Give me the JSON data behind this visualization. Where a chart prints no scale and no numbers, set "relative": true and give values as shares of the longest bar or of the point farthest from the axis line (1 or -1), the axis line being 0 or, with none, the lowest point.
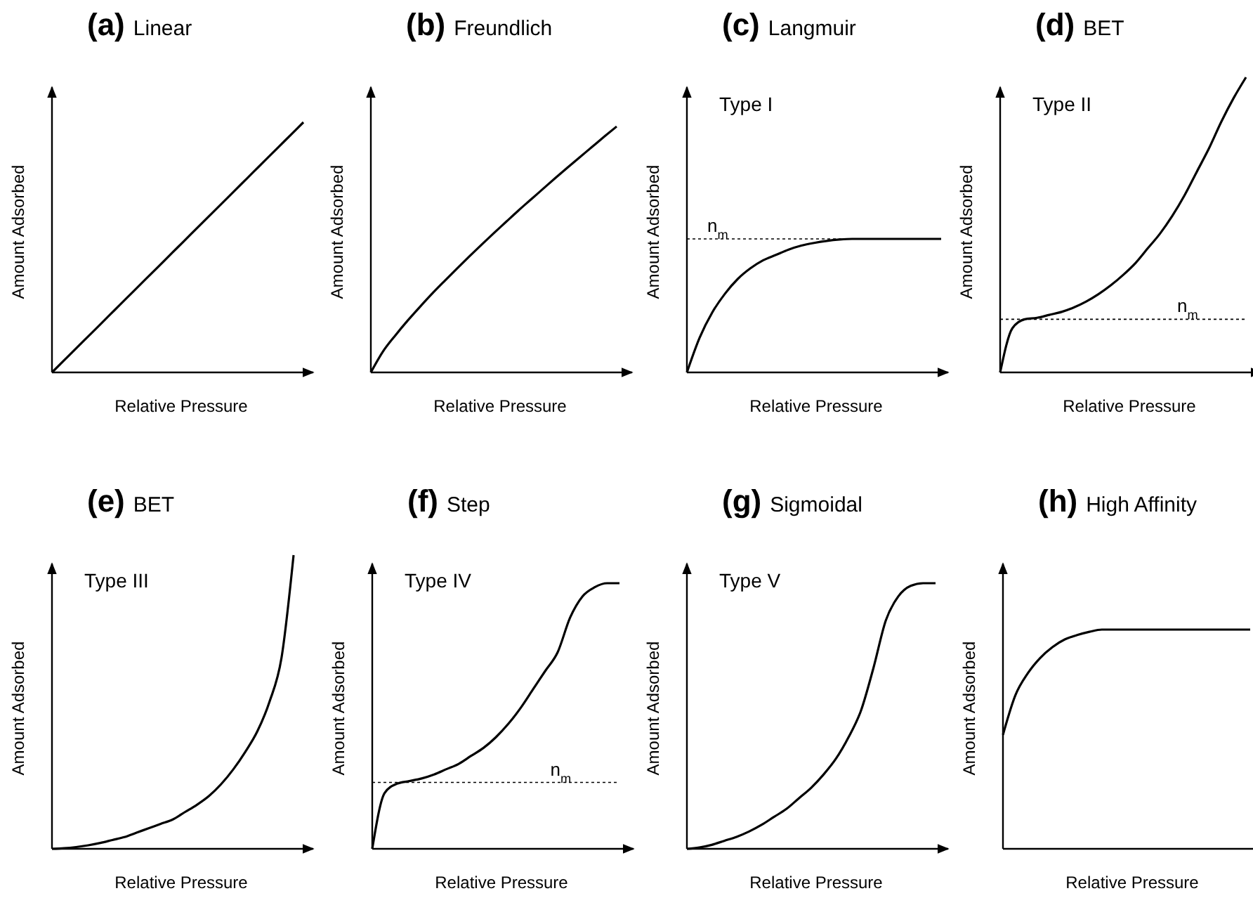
{
  "chart_data": [
    {
      "type": "line",
      "title": "(a) Linear",
      "xlabel": "Relative Pressure",
      "ylabel": "Amount Adsorbed",
      "relative": true,
      "color": "#000000",
      "categories": [
        null,
        null,
        null,
        null,
        null,
        null,
        null,
        null,
        null,
        null,
        null,
        null,
        null,
        null,
        null,
        null,
        null,
        null,
        null,
        null,
        null
      ],
      "values": [
        0,
        0.05,
        0.1,
        0.15,
        0.2,
        0.25,
        0.3,
        0.35,
        0.4,
        0.45,
        0.5,
        0.55,
        0.6,
        0.65,
        0.7,
        0.75,
        0.8,
        0.85,
        0.9,
        0.95,
        1
      ]
    },
    {
      "type": "line",
      "title": "(b) Freundlich",
      "xlabel": "Relative Pressure",
      "ylabel": "Amount Adsorbed",
      "relative": true,
      "color": "#000000",
      "categories": [
        null,
        null,
        null,
        null,
        null,
        null,
        null,
        null,
        null,
        null,
        null,
        null,
        null,
        null,
        null,
        null,
        null,
        null,
        null,
        null,
        null
      ],
      "values": [
        0,
        0.086,
        0.151,
        0.211,
        0.267,
        0.321,
        0.372,
        0.422,
        0.471,
        0.519,
        0.566,
        0.612,
        0.658,
        0.702,
        0.746,
        0.79,
        0.833,
        0.875,
        0.917,
        0.959,
        1
      ]
    },
    {
      "type": "line",
      "title": "(c) Langmuir",
      "xlabel": "Relative Pressure",
      "ylabel": "Amount Adsorbed",
      "relative": true,
      "color": "#000000",
      "annotations": [
        "Type I"
      ],
      "ref_lines": [
        {
          "axis": "y",
          "value": 1,
          "label": "n$_{m}$",
          "line_style": "dotted"
        }
      ],
      "categories": [
        null,
        null,
        null,
        null,
        null,
        null,
        null,
        null,
        null,
        null,
        null,
        null,
        null,
        null,
        null,
        null,
        null,
        null,
        null,
        null,
        null
      ],
      "values": [
        0,
        0.26,
        0.45,
        0.59,
        0.7,
        0.78,
        0.84,
        0.88,
        0.92,
        0.95,
        0.97,
        0.985,
        0.995,
        1,
        1,
        1,
        1,
        1,
        1,
        1,
        1
      ]
    },
    {
      "type": "line",
      "title": "(d) BET",
      "xlabel": "Relative Pressure",
      "ylabel": "Amount Adsorbed",
      "relative": true,
      "color": "#000000",
      "annotations": [
        "Type II"
      ],
      "ref_lines": [
        {
          "axis": "y",
          "value": 0.18,
          "label": "n$_{m}$",
          "line_style": "dotted"
        }
      ],
      "categories": [
        null,
        null,
        null,
        null,
        null,
        null,
        null,
        null,
        null,
        null,
        null,
        null,
        null,
        null,
        null,
        null,
        null,
        null,
        null,
        null,
        null
      ],
      "values": [
        0,
        0.15,
        0.18,
        0.185,
        0.195,
        0.205,
        0.22,
        0.24,
        0.265,
        0.295,
        0.33,
        0.37,
        0.42,
        0.47,
        0.53,
        0.6,
        0.68,
        0.76,
        0.85,
        0.93,
        1
      ]
    },
    {
      "type": "line",
      "title": "(e) BET",
      "xlabel": "Relative Pressure",
      "ylabel": "Amount Adsorbed",
      "relative": true,
      "color": "#000000",
      "annotations": [
        "Type III"
      ],
      "categories": [
        null,
        null,
        null,
        null,
        null,
        null,
        null,
        null,
        null,
        null,
        null,
        null,
        null,
        null,
        null,
        null,
        null,
        null,
        null,
        null,
        null
      ],
      "values": [
        0,
        0.002,
        0.006,
        0.012,
        0.02,
        0.03,
        0.04,
        0.055,
        0.07,
        0.085,
        0.1,
        0.125,
        0.15,
        0.18,
        0.22,
        0.27,
        0.33,
        0.4,
        0.5,
        0.65,
        1
      ]
    },
    {
      "type": "line",
      "title": "(f) Step",
      "xlabel": "Relative Pressure",
      "ylabel": "Amount Adsorbed",
      "relative": true,
      "color": "#000000",
      "annotations": [
        "Type IV"
      ],
      "ref_lines": [
        {
          "axis": "y",
          "value": 0.25,
          "label": "n$_{m}$",
          "line_style": "dotted"
        }
      ],
      "categories": [
        null,
        null,
        null,
        null,
        null,
        null,
        null,
        null,
        null,
        null,
        null,
        null,
        null,
        null,
        null,
        null,
        null,
        null,
        null,
        null,
        null
      ],
      "values": [
        0,
        0.21,
        0.245,
        0.255,
        0.265,
        0.28,
        0.3,
        0.32,
        0.35,
        0.38,
        0.42,
        0.47,
        0.53,
        0.6,
        0.67,
        0.74,
        0.87,
        0.95,
        0.985,
        1,
        1
      ]
    },
    {
      "type": "line",
      "title": "(g) Sigmoidal",
      "xlabel": "Relative Pressure",
      "ylabel": "Amount Adsorbed",
      "relative": true,
      "color": "#000000",
      "annotations": [
        "Type V"
      ],
      "categories": [
        null,
        null,
        null,
        null,
        null,
        null,
        null,
        null,
        null,
        null,
        null,
        null,
        null,
        null,
        null,
        null,
        null,
        null,
        null,
        null,
        null
      ],
      "values": [
        0,
        0.005,
        0.015,
        0.03,
        0.045,
        0.065,
        0.09,
        0.12,
        0.15,
        0.19,
        0.23,
        0.28,
        0.34,
        0.42,
        0.52,
        0.68,
        0.86,
        0.95,
        0.99,
        1,
        1
      ]
    },
    {
      "type": "line",
      "title": "(h) High Affinity",
      "xlabel": "Relative Pressure",
      "ylabel": "Amount Adsorbed",
      "relative": true,
      "color": "#000000",
      "categories": [
        null,
        null,
        null,
        null,
        null,
        null,
        null,
        null,
        null,
        null,
        null,
        null,
        null,
        null,
        null,
        null,
        null,
        null,
        null,
        null,
        null
      ],
      "values": [
        0.52,
        0.7,
        0.8,
        0.87,
        0.92,
        0.955,
        0.975,
        0.99,
        1,
        1,
        1,
        1,
        1,
        1,
        1,
        1,
        1,
        1,
        1,
        1,
        1
      ]
    }
  ]
}
